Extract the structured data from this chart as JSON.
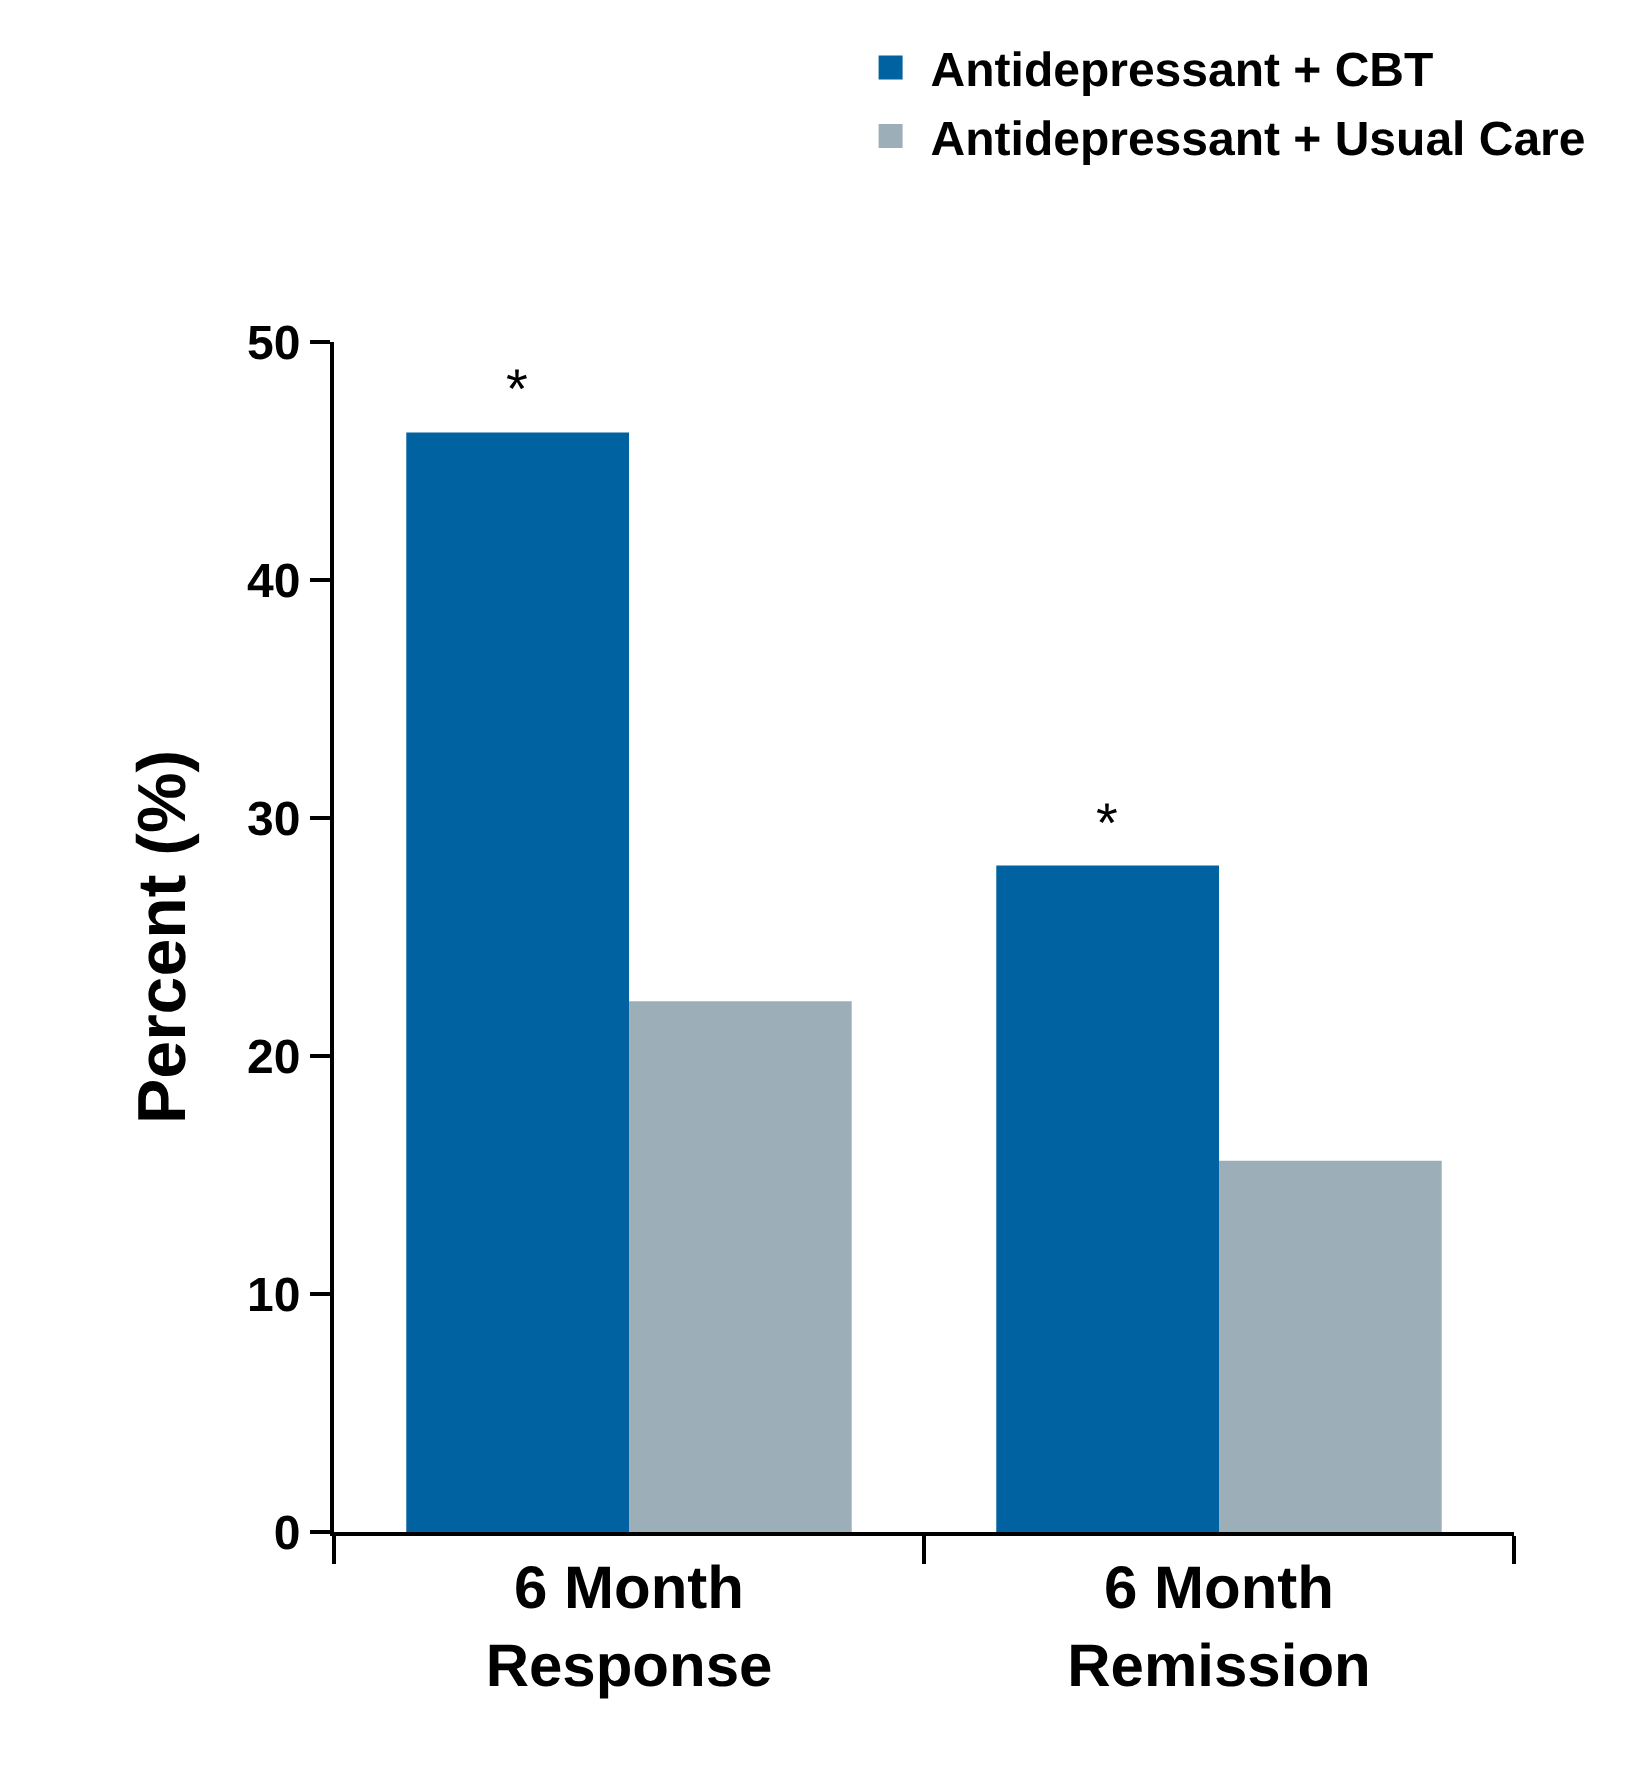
{
  "chart_data": {
    "type": "bar",
    "ylabel": "Percent (%)",
    "categories": [
      "6 Month\nResponse",
      "6 Month\nRemission"
    ],
    "series": [
      {
        "name": "Antidepressant + CBT",
        "color": "#0062a0",
        "values": [
          46.2,
          28.0
        ]
      },
      {
        "name": "Antidepressant + Usual Care",
        "color": "#9caeb8",
        "values": [
          22.3,
          15.6
        ]
      }
    ],
    "ylim": [
      0,
      50
    ],
    "yticks": [
      0,
      10,
      20,
      30,
      40,
      50
    ],
    "legend": "top right",
    "annotations": [
      {
        "text": "*",
        "x": "6 Month\nResponse",
        "y": 46.2
      },
      {
        "text": "*",
        "x": "6 Month\nRemission",
        "y": 28.0
      }
    ]
  }
}
